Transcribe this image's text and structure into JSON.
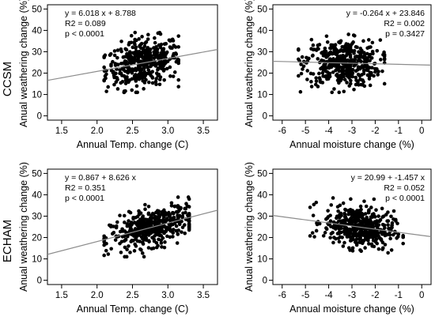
{
  "row_labels": [
    "CCSM",
    "ECHAM"
  ],
  "chart_data": [
    {
      "type": "scatter",
      "model": "CCSM",
      "xlabel": "Annual Temp. change (C)",
      "ylabel": "Anual weathering change (%)",
      "xlim": [
        1.3,
        3.7
      ],
      "ylim": [
        -2,
        52
      ],
      "xticks": [
        1.5,
        2.0,
        2.5,
        3.0,
        3.5
      ],
      "xticklabels": [
        "1.5",
        "2.0",
        "2.5",
        "3.0",
        "3.5"
      ],
      "yticks": [
        0,
        10,
        20,
        30,
        40,
        50
      ],
      "yticklabels": [
        "0",
        "10",
        "20",
        "30",
        "40",
        "50"
      ],
      "annotations": [
        "y =  6.018 x + 8.788",
        "R2 =  0.089",
        "p < 0.0001"
      ],
      "annotation_align": "left",
      "fit": {
        "slope": 6.018,
        "intercept": 8.788
      },
      "cloud": {
        "x_min": 2.1,
        "x_max": 3.15,
        "x_center": 2.65,
        "x_sd": 0.26,
        "y_sd": 5.5,
        "n": 420
      }
    },
    {
      "type": "scatter",
      "model": "CCSM",
      "xlabel": "Annual moisture change (%)",
      "ylabel": "Anual weathering change (%)",
      "xlim": [
        -6.4,
        0.4
      ],
      "ylim": [
        -2,
        52
      ],
      "xticks": [
        -6,
        -5,
        -4,
        -3,
        -2,
        -1,
        0
      ],
      "xticklabels": [
        "-6",
        "-5",
        "-4",
        "-3",
        "-2",
        "-1",
        "0"
      ],
      "yticks": [
        0,
        10,
        20,
        30,
        40,
        50
      ],
      "yticklabels": [
        "0",
        "10",
        "20",
        "30",
        "40",
        "50"
      ],
      "annotations": [
        "y =  -0.264 x + 23.846",
        "R2 =  0.002",
        "p = 0.3427"
      ],
      "annotation_align": "right",
      "fit": {
        "slope": -0.264,
        "intercept": 23.846
      },
      "cloud": {
        "x_min": -5.3,
        "x_max": -1.6,
        "x_center": -3.4,
        "x_sd": 0.8,
        "y_sd": 5.5,
        "n": 420
      }
    },
    {
      "type": "scatter",
      "model": "ECHAM",
      "xlabel": "Annual Temp. change (C)",
      "ylabel": "Anual weathering change (%)",
      "xlim": [
        1.3,
        3.7
      ],
      "ylim": [
        -2,
        52
      ],
      "xticks": [
        1.5,
        2.0,
        2.5,
        3.0,
        3.5
      ],
      "xticklabels": [
        "1.5",
        "2.0",
        "2.5",
        "3.0",
        "3.5"
      ],
      "yticks": [
        0,
        10,
        20,
        30,
        40,
        50
      ],
      "yticklabels": [
        "0",
        "10",
        "20",
        "30",
        "40",
        "50"
      ],
      "annotations": [
        "y =  0.867 + 8.626 x",
        "R2 =  0.351",
        "p < 0.0001"
      ],
      "annotation_align": "left",
      "fit": {
        "slope": 8.626,
        "intercept": 0.867
      },
      "cloud": {
        "x_min": 2.1,
        "x_max": 3.3,
        "x_center": 2.8,
        "x_sd": 0.3,
        "y_sd": 4.2,
        "n": 450
      }
    },
    {
      "type": "scatter",
      "model": "ECHAM",
      "xlabel": "Annual moisture change (%)",
      "ylabel": "Anual weathering change (%)",
      "xlim": [
        -6.4,
        0.4
      ],
      "ylim": [
        -2,
        52
      ],
      "xticks": [
        -6,
        -5,
        -4,
        -3,
        -2,
        -1,
        0
      ],
      "xticklabels": [
        "-6",
        "-5",
        "-4",
        "-3",
        "-2",
        "-1",
        "0"
      ],
      "yticks": [
        0,
        10,
        20,
        30,
        40,
        50
      ],
      "yticklabels": [
        "0",
        "10",
        "20",
        "30",
        "40",
        "50"
      ],
      "annotations": [
        "y =  20.99 + -1.457 x",
        "R2 =  0.052",
        "p < 0.0001"
      ],
      "annotation_align": "right",
      "fit": {
        "slope": -1.457,
        "intercept": 20.99
      },
      "cloud": {
        "x_min": -4.8,
        "x_max": -0.8,
        "x_center": -2.7,
        "x_sd": 0.75,
        "y_sd": 4.8,
        "n": 450
      }
    }
  ]
}
